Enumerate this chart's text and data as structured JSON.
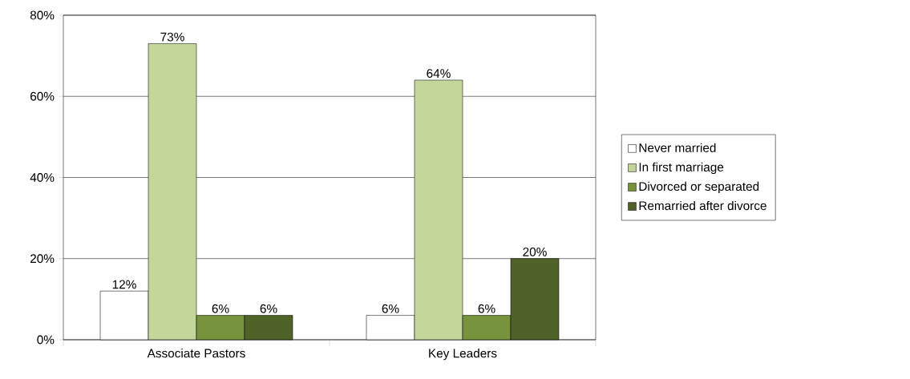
{
  "chart_data": {
    "type": "bar",
    "categories": [
      "Associate Pastors",
      "Key Leaders"
    ],
    "series": [
      {
        "name": "Never married",
        "color": "#ffffff",
        "values": [
          12,
          6
        ],
        "value_labels": [
          "12%",
          "6%"
        ]
      },
      {
        "name": "In first marriage",
        "color": "#c4d79b",
        "values": [
          73,
          64
        ],
        "value_labels": [
          "73%",
          "64%"
        ]
      },
      {
        "name": "Divorced or separated",
        "color": "#77933c",
        "values": [
          6,
          6
        ],
        "value_labels": [
          "6%",
          "6%"
        ]
      },
      {
        "name": "Remarried after divorce",
        "color": "#4f6228",
        "values": [
          6,
          20
        ],
        "value_labels": [
          "6%",
          "20%"
        ]
      }
    ],
    "ylim": [
      0,
      80
    ],
    "yticks": [
      {
        "value": 0,
        "label": "0%"
      },
      {
        "value": 20,
        "label": "20%"
      },
      {
        "value": 40,
        "label": "40%"
      },
      {
        "value": 60,
        "label": "60%"
      },
      {
        "value": 80,
        "label": "80%"
      }
    ],
    "grid": "y",
    "legend": "right"
  }
}
